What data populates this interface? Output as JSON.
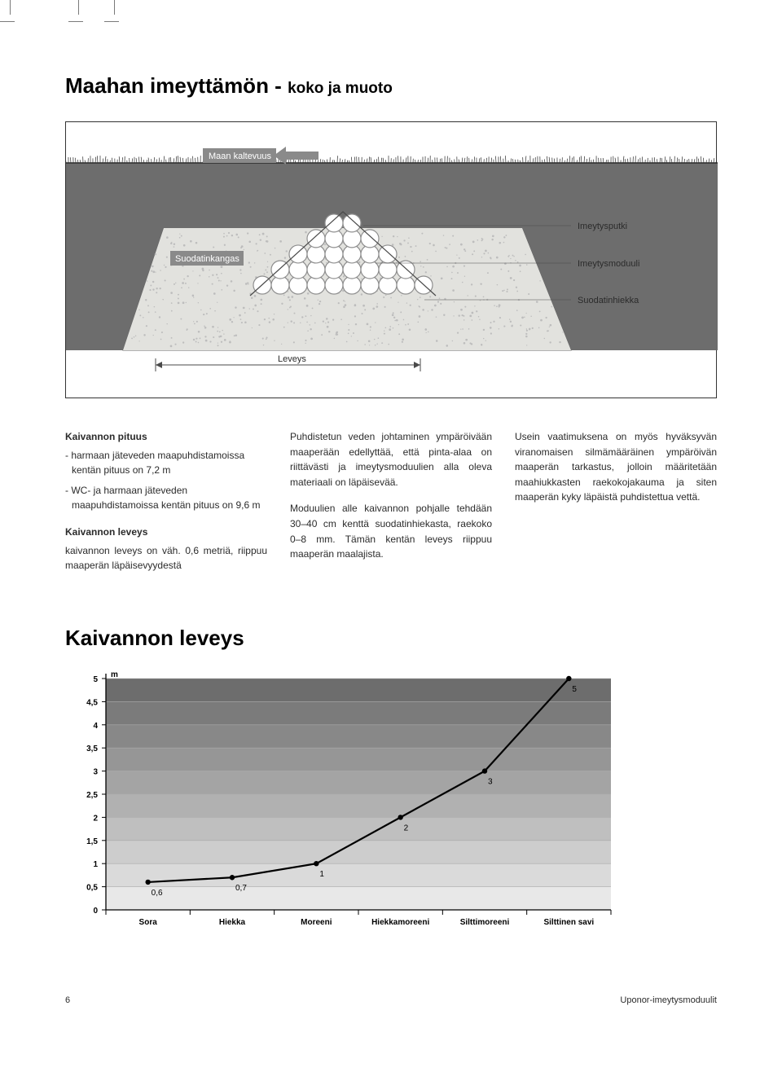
{
  "title_main": "Maahan imeyttämön - ",
  "title_sub": "koko ja muoto",
  "diagram": {
    "labels": {
      "slope": "Maan kaltevuus",
      "filter_fabric": "Suodatinkangas",
      "width": "Leveys",
      "pipe": "Imeytysputki",
      "module": "Imeytysmoduuli",
      "filter_sand": "Suodatinhiekka"
    },
    "colors": {
      "sky": "#ffffff",
      "ground_top": "#6d6d6d",
      "trench_wall": "#a5a5a5",
      "sand": "#e2e2de",
      "circle_stroke": "#8e8e8e",
      "circle_fill": "#ffffff",
      "speckle": "#bdbdbd",
      "arrow": "#8a8a8a",
      "label_bg": "#8a8a8a",
      "label_text": "#ffffff",
      "line": "#4a4a4a"
    }
  },
  "col1": {
    "h1": "Kaivannon pituus",
    "li1": "- harmaan jäteveden maapuhdistamoissa kentän pituus on 7,2 m",
    "li2": "- WC- ja harmaan jäteveden maapuhdistamoissa kentän pituus on 9,6 m",
    "h2": "Kaivannon leveys",
    "p2": "kaivannon leveys on väh. 0,6 metriä, riippuu maaperän läpäisevyydestä"
  },
  "col2": {
    "p1": "Puhdistetun veden johtaminen ympäröivään maaperään edellyttää, että pinta-alaa on riittävästi ja imeytysmoduulien alla oleva materiaali on läpäisevää.",
    "p2": "Moduulien alle kaivannon pohjalle tehdään 30–40 cm kenttä suodatinhiekasta, raekoko 0–8 mm. Tämän kentän leveys riippuu maaperän maalajista."
  },
  "col3": {
    "p1": "Usein vaatimuksena on myös hyväksyvän viranomaisen silmämääräinen ympäröivän maaperän tarkastus, jolloin määritetään maahiukkasten raekokojakauma ja siten maaperän kyky läpäistä puhdistettua vettä."
  },
  "chart": {
    "title": "Kaivannon leveys",
    "y_unit": "m",
    "ylim": [
      0,
      5
    ],
    "ytick_step": 0.5,
    "yticks": [
      "0",
      "0,5",
      "1",
      "1,5",
      "2",
      "2,5",
      "3",
      "3,5",
      "4",
      "4,5",
      "5"
    ],
    "categories": [
      "Sora",
      "Hiekka",
      "Moreeni",
      "Hiekkamoreeni",
      "Silttimoreeni",
      "Silttinen savi"
    ],
    "values": [
      0.6,
      0.7,
      1,
      2,
      3,
      5
    ],
    "value_labels": [
      "0,6",
      "0,7",
      "1",
      "2",
      "3",
      "5"
    ],
    "colors": {
      "plot_top": "#6d6d6d",
      "plot_bottom": "#e8e8e8",
      "grid": "#aaaaaa",
      "axis": "#000000",
      "line": "#000000",
      "point": "#000000",
      "label_text": "#000000",
      "tick_text": "#000000"
    },
    "line_width": 2.2,
    "point_radius": 3.2,
    "font_size_tick": 10,
    "font_size_cat": 10
  },
  "footer": {
    "page": "6",
    "doc": "Uponor-imeytysmoduulit"
  }
}
